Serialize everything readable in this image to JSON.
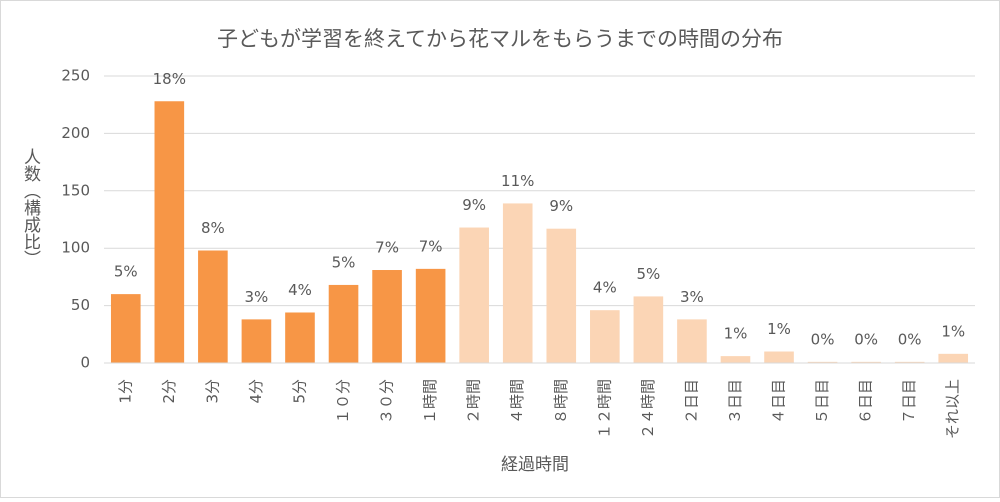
{
  "chart_data": {
    "type": "bar",
    "title": "子どもが学習を終えてから花マルをもらうまでの時間の分布",
    "x_label": "経過時間",
    "y_label": "人数（構成比）",
    "categories": [
      "1分",
      "2分",
      "3分",
      "4分",
      "5分",
      "１０分",
      "３０分",
      "１時間",
      "２時間",
      "４時間",
      "８時間",
      "１２時間",
      "２４時間",
      "２日目",
      "３日目",
      "４日目",
      "５日目",
      "６日目",
      "７日目",
      "それ以上"
    ],
    "values": [
      60,
      228,
      98,
      38,
      44,
      68,
      81,
      82,
      118,
      139,
      117,
      46,
      58,
      38,
      6,
      10,
      1,
      1,
      1,
      8
    ],
    "percent_labels": [
      "5%",
      "18%",
      "8%",
      "3%",
      "4%",
      "5%",
      "7%",
      "7%",
      "9%",
      "11%",
      "9%",
      "4%",
      "5%",
      "3%",
      "1%",
      "1%",
      "0%",
      "0%",
      "0%",
      "1%"
    ],
    "colors": [
      "#f79646",
      "#f79646",
      "#f79646",
      "#f79646",
      "#f79646",
      "#f79646",
      "#f79646",
      "#f79646",
      "#fbd5b5",
      "#fbd5b5",
      "#fbd5b5",
      "#fbd5b5",
      "#fbd5b5",
      "#fbd5b5",
      "#fbd5b5",
      "#fbd5b5",
      "#fbd5b5",
      "#fbd5b5",
      "#fbd5b5",
      "#fbd5b5"
    ],
    "ylim": [
      0,
      250
    ],
    "yticks": [
      0,
      50,
      100,
      150,
      200,
      250
    ],
    "grid": true
  }
}
